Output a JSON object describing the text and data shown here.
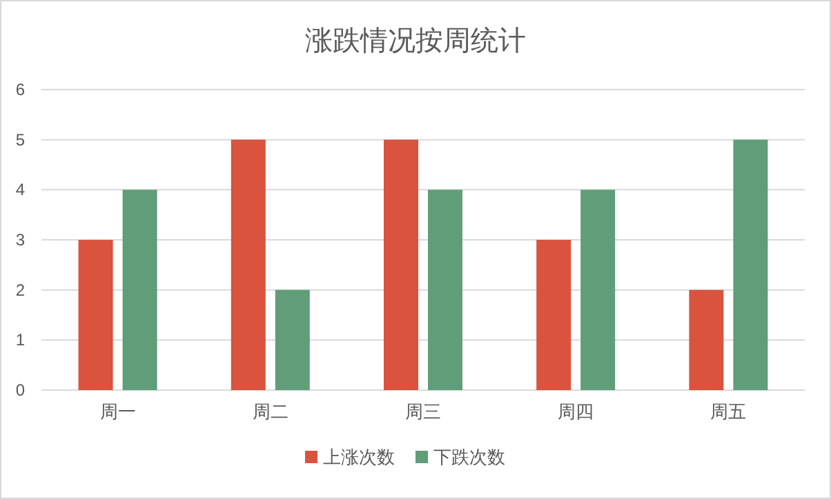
{
  "chart_data": {
    "type": "bar",
    "title": "涨跌情况按周统计",
    "categories": [
      "周一",
      "周二",
      "周三",
      "周四",
      "周五"
    ],
    "series": [
      {
        "name": "上涨次数",
        "color": "#d9533f",
        "values": [
          3,
          5,
          5,
          3,
          2
        ]
      },
      {
        "name": "下跌次数",
        "color": "#5f9e78",
        "values": [
          4,
          2,
          4,
          4,
          5
        ]
      }
    ],
    "ylim": [
      0,
      6
    ],
    "yticks": [
      0,
      1,
      2,
      3,
      4,
      5,
      6
    ],
    "grid": "y",
    "legend": "bottom"
  }
}
